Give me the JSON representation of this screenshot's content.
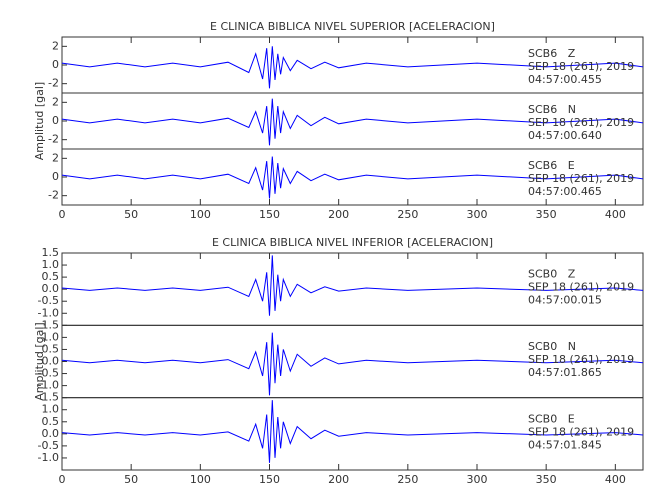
{
  "chart_data": [
    {
      "type": "line",
      "title": "E CLINICA BIBLICA NIVEL SUPERIOR [ACELERACION]",
      "ylabel": "Amplitud [gal]",
      "xlim": [
        0,
        420
      ],
      "xticks": [
        0,
        50,
        100,
        150,
        200,
        250,
        300,
        350,
        400
      ],
      "ylim": [
        -3,
        3
      ],
      "yticks": [
        -2,
        0,
        2
      ],
      "x": [
        0,
        20,
        40,
        60,
        80,
        100,
        120,
        135,
        140,
        145,
        148,
        150,
        152,
        154,
        156,
        158,
        160,
        165,
        170,
        180,
        190,
        200,
        220,
        250,
        300,
        350,
        400,
        420
      ],
      "series": [
        {
          "name": "SCB6   Z",
          "date": "SEP 18 (261), 2019",
          "time": "04:57:00.455",
          "color": "#0000ff",
          "values": [
            0.2,
            -0.2,
            0.2,
            -0.2,
            0.2,
            -0.2,
            0.3,
            -0.8,
            1.2,
            -1.5,
            1.8,
            -2.5,
            2.0,
            -1.6,
            1.2,
            -1.0,
            0.8,
            -0.6,
            0.5,
            -0.4,
            0.3,
            -0.3,
            0.2,
            -0.2,
            0.2,
            -0.2,
            0.2,
            -0.2
          ]
        },
        {
          "name": "SCB6   N",
          "date": "SEP 18 (261), 2019",
          "time": "04:57:00.640",
          "color": "#0000ff",
          "values": [
            0.2,
            -0.2,
            0.2,
            -0.2,
            0.2,
            -0.2,
            0.3,
            -0.7,
            1.0,
            -1.3,
            1.6,
            -2.6,
            2.4,
            -1.9,
            1.6,
            -1.3,
            1.0,
            -0.8,
            0.6,
            -0.5,
            0.4,
            -0.3,
            0.2,
            -0.2,
            0.2,
            -0.2,
            0.2,
            -0.2
          ]
        },
        {
          "name": "SCB6   E",
          "date": "SEP 18 (261), 2019",
          "time": "04:57:00.465",
          "color": "#0000ff",
          "values": [
            0.2,
            -0.2,
            0.2,
            -0.2,
            0.2,
            -0.2,
            0.3,
            -0.7,
            1.0,
            -1.4,
            1.7,
            -2.3,
            2.2,
            -1.8,
            1.5,
            -1.2,
            0.9,
            -0.7,
            0.6,
            -0.4,
            0.3,
            -0.3,
            0.2,
            -0.2,
            0.2,
            -0.2,
            0.2,
            -0.2
          ]
        }
      ]
    },
    {
      "type": "line",
      "title": "E CLINICA BIBLICA NIVEL INFERIOR [ACELERACION]",
      "ylabel": "Amplitud [gal]",
      "xlim": [
        0,
        420
      ],
      "xticks": [
        0,
        50,
        100,
        150,
        200,
        250,
        300,
        350,
        400
      ],
      "ylim": [
        -1.5,
        1.5
      ],
      "yticks": [
        {
          "value": -1,
          "label": "-1.0"
        },
        -0.5,
        {
          "value": 0,
          "label": "0.0"
        },
        0.5,
        {
          "value": 1,
          "label": "1.0"
        },
        1.5
      ],
      "x": [
        0,
        20,
        40,
        60,
        80,
        100,
        120,
        135,
        140,
        145,
        148,
        150,
        152,
        154,
        156,
        158,
        160,
        165,
        170,
        180,
        190,
        200,
        220,
        250,
        300,
        350,
        400,
        420
      ],
      "series": [
        {
          "name": "SCB0   Z",
          "date": "SEP 18 (261), 2019",
          "time": "04:57:00.015",
          "color": "#0000ff",
          "values": [
            0.05,
            -0.05,
            0.05,
            -0.05,
            0.05,
            -0.05,
            0.08,
            -0.3,
            0.4,
            -0.5,
            0.7,
            -1.1,
            1.4,
            -0.9,
            0.6,
            -0.5,
            0.4,
            -0.3,
            0.2,
            -0.15,
            0.1,
            -0.08,
            0.05,
            -0.05,
            0.05,
            -0.05,
            0.05,
            -0.05
          ]
        },
        {
          "name": "SCB0   N",
          "date": "SEP 18 (261), 2019",
          "time": "04:57:01.865",
          "color": "#0000ff",
          "values": [
            0.05,
            -0.05,
            0.05,
            -0.05,
            0.05,
            -0.05,
            0.08,
            -0.3,
            0.4,
            -0.6,
            0.8,
            -1.4,
            1.2,
            -0.9,
            0.7,
            -0.6,
            0.5,
            -0.4,
            0.3,
            -0.2,
            0.15,
            -0.1,
            0.05,
            -0.05,
            0.05,
            -0.05,
            0.05,
            -0.05
          ]
        },
        {
          "name": "SCB0   E",
          "date": "SEP 18 (261), 2019",
          "time": "04:57:01.845",
          "color": "#0000ff",
          "values": [
            0.05,
            -0.05,
            0.05,
            -0.05,
            0.05,
            -0.05,
            0.08,
            -0.3,
            0.4,
            -0.6,
            0.8,
            -1.2,
            1.4,
            -1.0,
            0.7,
            -0.6,
            0.5,
            -0.4,
            0.3,
            -0.2,
            0.15,
            -0.1,
            0.05,
            -0.05,
            0.05,
            -0.05,
            0.05,
            -0.05
          ]
        }
      ]
    }
  ]
}
